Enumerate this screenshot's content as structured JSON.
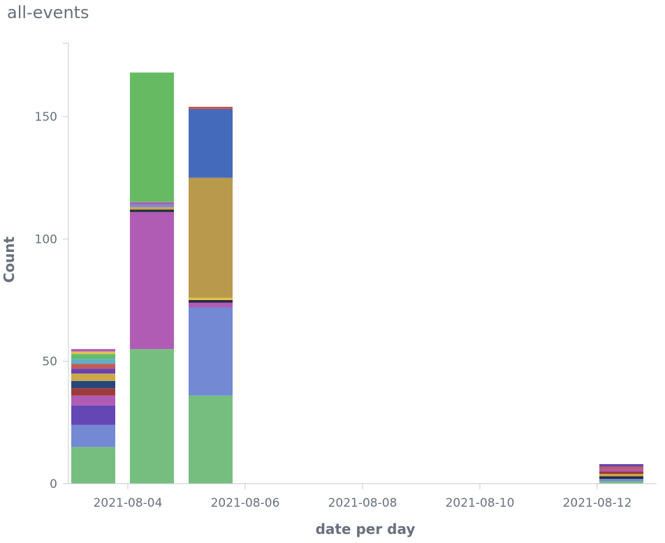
{
  "title": "all-events",
  "chart_data": {
    "type": "bar",
    "stacked": true,
    "title": "all-events",
    "xlabel": "date per day",
    "ylabel": "Count",
    "ylim": [
      0,
      170
    ],
    "y_ticks": [
      0,
      50,
      100,
      150
    ],
    "x_ticks": [
      "2021-08-04",
      "2021-08-06",
      "2021-08-08",
      "2021-08-10",
      "2021-08-12"
    ],
    "legend": "none",
    "grid": false,
    "categories": [
      "2021-08-03",
      "2021-08-04",
      "2021-08-05",
      "2021-08-06",
      "2021-08-07",
      "2021-08-08",
      "2021-08-09",
      "2021-08-10",
      "2021-08-11",
      "2021-08-12"
    ],
    "bars": [
      {
        "date": "2021-08-03",
        "total": 55,
        "segments": [
          {
            "value": 15,
            "color": "#76be80"
          },
          {
            "value": 9,
            "color": "#7389d4"
          },
          {
            "value": 8,
            "color": "#6446b5"
          },
          {
            "value": 4,
            "color": "#b05cb5"
          },
          {
            "value": 3,
            "color": "#9e3a3a"
          },
          {
            "value": 3,
            "color": "#25477b"
          },
          {
            "value": 3,
            "color": "#c9a94a"
          },
          {
            "value": 2,
            "color": "#6a3fae"
          },
          {
            "value": 2,
            "color": "#c25a5a"
          },
          {
            "value": 2,
            "color": "#5fb0c4"
          },
          {
            "value": 2,
            "color": "#66bb6a"
          },
          {
            "value": 1,
            "color": "#e0c050"
          },
          {
            "value": 1,
            "color": "#b05cb5"
          }
        ]
      },
      {
        "date": "2021-08-04",
        "total": 168,
        "segments": [
          {
            "value": 55,
            "color": "#76be80"
          },
          {
            "value": 56,
            "color": "#b05cb5"
          },
          {
            "value": 1,
            "color": "#1f2a44"
          },
          {
            "value": 1,
            "color": "#c9a94a"
          },
          {
            "value": 1,
            "color": "#7389d4"
          },
          {
            "value": 1,
            "color": "#b05cb5"
          },
          {
            "value": 53,
            "color": "#66bb62"
          }
        ]
      },
      {
        "date": "2021-08-05",
        "total": 154,
        "segments": [
          {
            "value": 36,
            "color": "#76be80"
          },
          {
            "value": 36,
            "color": "#7389d4"
          },
          {
            "value": 2,
            "color": "#b05cb5"
          },
          {
            "value": 1,
            "color": "#1f2a44"
          },
          {
            "value": 1,
            "color": "#e0c050"
          },
          {
            "value": 49,
            "color": "#b9994c"
          },
          {
            "value": 28,
            "color": "#446abb"
          },
          {
            "value": 1,
            "color": "#c25a5a"
          }
        ]
      },
      {
        "date": "2021-08-12",
        "total": 8,
        "segments": [
          {
            "value": 1,
            "color": "#76be80"
          },
          {
            "value": 1,
            "color": "#7389d4"
          },
          {
            "value": 1,
            "color": "#1f2a44"
          },
          {
            "value": 1,
            "color": "#c9a94a"
          },
          {
            "value": 1,
            "color": "#9e3a3a"
          },
          {
            "value": 1,
            "color": "#b05cb5"
          },
          {
            "value": 1,
            "color": "#c25a5a"
          },
          {
            "value": 1,
            "color": "#6446b5"
          }
        ]
      }
    ]
  }
}
